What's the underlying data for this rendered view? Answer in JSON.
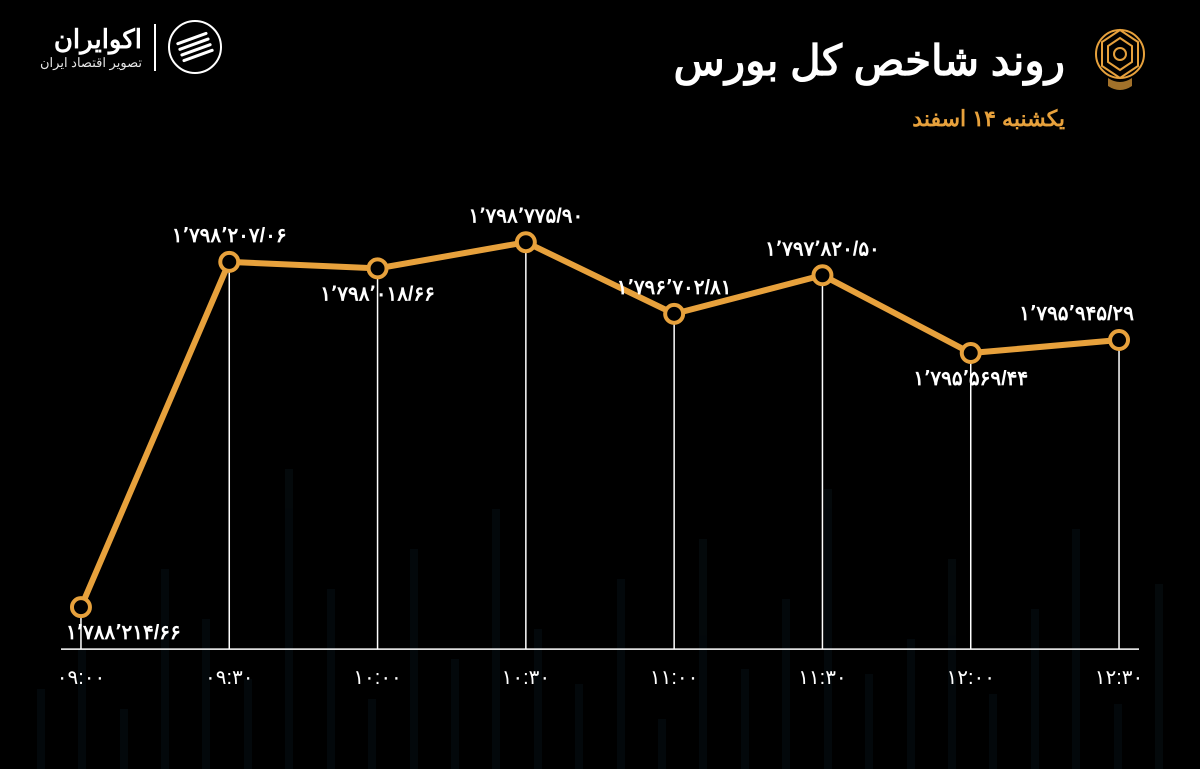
{
  "header": {
    "title": "روند شاخص کل بورس",
    "subtitle": "یکشنبه ۱۴ اسفند",
    "brand_name": "اکوایران",
    "brand_tag": "تصویر اقتصاد ایران"
  },
  "chart": {
    "type": "line",
    "background_color": "#000000",
    "line_color": "#e7a13c",
    "marker_fill": "#000000",
    "marker_stroke": "#e7a13c",
    "grid_color": "#ffffff",
    "text_color": "#ffffff",
    "line_width": 6,
    "marker_radius": 9,
    "label_fontsize": 20,
    "x_labels": [
      "۰۹:۰۰",
      "۰۹:۳۰",
      "۱۰:۰۰",
      "۱۰:۳۰",
      "۱۱:۰۰",
      "۱۱:۳۰",
      "۱۲:۰۰",
      "۱۲:۳۰"
    ],
    "values": [
      1788214.66,
      1798207.06,
      1798018.66,
      1798775.9,
      1796702.81,
      1797820.5,
      1795569.44,
      1795945.29
    ],
    "value_labels": [
      "۱٬۷۸۸٬۲۱۴/۶۶",
      "۱٬۷۹۸٬۲۰۷/۰۶",
      "۱٬۷۹۸٬۰۱۸/۶۶",
      "۱٬۷۹۸٬۷۷۵/۹۰",
      "۱٬۷۹۶٬۷۰۲/۸۱",
      "۱٬۷۹۷٬۸۲۰/۵۰",
      "۱٬۷۹۵٬۵۶۹/۴۴",
      "۱٬۷۹۵٬۹۴۵/۲۹"
    ],
    "label_positions": [
      "below",
      "above",
      "below",
      "above",
      "above",
      "above",
      "below",
      "above"
    ],
    "y_min": 1787000,
    "y_max": 1800000
  },
  "bg_bars": [
    80,
    120,
    60,
    200,
    150,
    90,
    300,
    180,
    70,
    220,
    110,
    260,
    140,
    85,
    190,
    50,
    230,
    100,
    170,
    280,
    95,
    130,
    210,
    75,
    160,
    240,
    65,
    185
  ]
}
